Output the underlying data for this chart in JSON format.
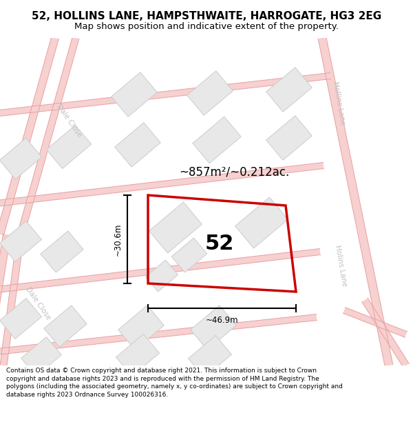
{
  "title": "52, HOLLINS LANE, HAMPSTHWAITE, HARROGATE, HG3 2EG",
  "subtitle": "Map shows position and indicative extent of the property.",
  "footer": "Contains OS data © Crown copyright and database right 2021. This information is subject to Crown copyright and database rights 2023 and is reproduced with the permission of HM Land Registry. The polygons (including the associated geometry, namely x, y co-ordinates) are subject to Crown copyright and database rights 2023 Ordnance Survey 100026316.",
  "bg_color": "#ffffff",
  "map_bg": "#f9f9f9",
  "road_fill": "#f7d0d0",
  "road_edge": "#e8a0a0",
  "building_fill": "#e8e8e8",
  "building_edge": "#cccccc",
  "plot_edge": "#cc0000",
  "dim_color": "#111111",
  "street_color": "#c0c0c0",
  "plot_label": "52",
  "area_text": "~857m²/~0.212ac.",
  "width_text": "~46.9m",
  "height_text": "~30.6m",
  "title_fontsize": 11,
  "subtitle_fontsize": 9.5,
  "footer_fontsize": 6.5
}
